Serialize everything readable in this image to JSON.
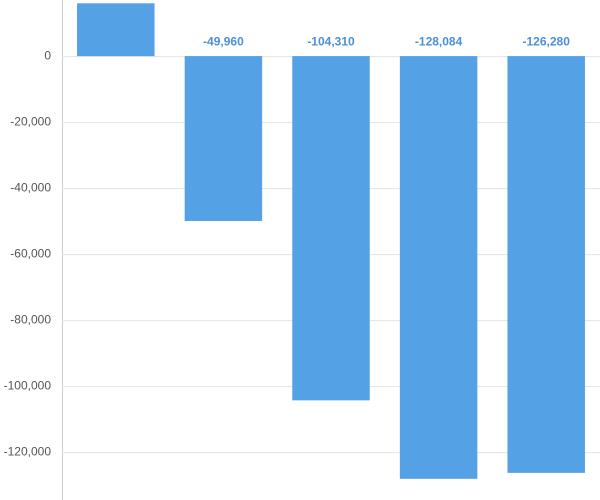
{
  "chart_data": {
    "type": "bar",
    "categories": [
      null,
      null,
      null,
      null,
      null
    ],
    "values": [
      16000,
      -49960,
      -104310,
      -128084,
      -126280
    ],
    "value_labels": [
      null,
      "-49,960",
      "-104,310",
      "-128,084",
      "-126,280"
    ],
    "color": "#55a1e5",
    "ylim": [
      -134500,
      17000
    ],
    "yticks": [
      {
        "value": -120000,
        "label": "-120,000"
      },
      {
        "value": -100000,
        "label": "-100,000"
      },
      {
        "value": -80000,
        "label": "-80,000"
      },
      {
        "value": -60000,
        "label": "-60,000"
      },
      {
        "value": -40000,
        "label": "-40,000"
      },
      {
        "value": -20000,
        "label": "-20,000"
      },
      0
    ],
    "grid": true
  }
}
